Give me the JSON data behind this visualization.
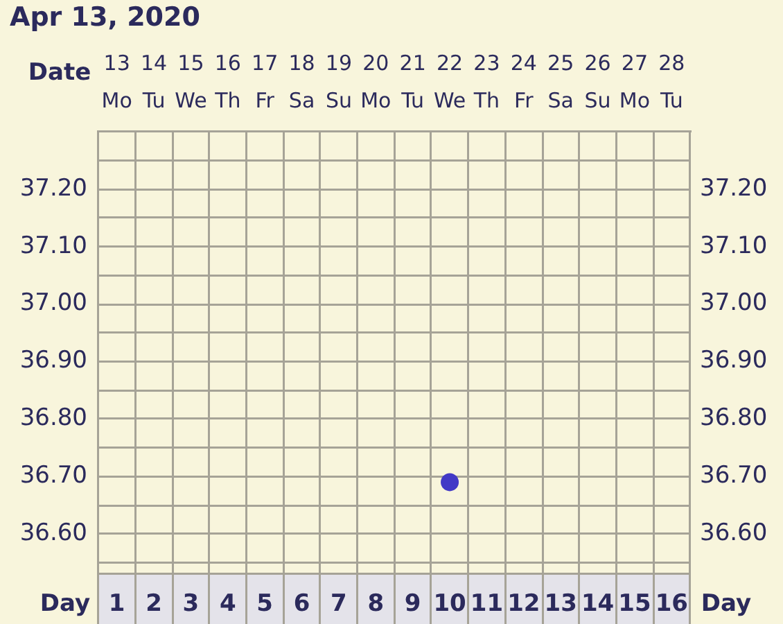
{
  "chart_data": {
    "type": "scatter",
    "title": "Apr 13, 2020",
    "xlabel": "Day",
    "x2label": "Date",
    "series": [
      {
        "color": "#4239c6",
        "x": [
          10
        ],
        "values": [
          36.69
        ]
      }
    ],
    "xlim": [
      0.5,
      16.5
    ],
    "xticks": [
      1,
      2,
      3,
      4,
      5,
      6,
      7,
      8,
      9,
      10,
      11,
      12,
      13,
      14,
      15,
      16
    ],
    "x2lim": [
      "2020-04-12T12:00",
      "2020-04-28T12:00"
    ],
    "x2ticks": [
      {
        "value": "2020-04-13",
        "label": "13 Mo"
      },
      {
        "value": "2020-04-14",
        "label": "14 Tu"
      },
      {
        "value": "2020-04-15",
        "label": "15 We"
      },
      {
        "value": "2020-04-16",
        "label": "16 Th"
      },
      {
        "value": "2020-04-17",
        "label": "17 Fr"
      },
      {
        "value": "2020-04-18",
        "label": "18 Sa"
      },
      {
        "value": "2020-04-19",
        "label": "19 Su"
      },
      {
        "value": "2020-04-20",
        "label": "20 Mo"
      },
      {
        "value": "2020-04-21",
        "label": "21 Tu"
      },
      {
        "value": "2020-04-22",
        "label": "22 We"
      },
      {
        "value": "2020-04-23",
        "label": "23 Th"
      },
      {
        "value": "2020-04-24",
        "label": "24 Fr"
      },
      {
        "value": "2020-04-25",
        "label": "25 Sa"
      },
      {
        "value": "2020-04-26",
        "label": "26 Su"
      },
      {
        "value": "2020-04-27",
        "label": "27 Mo"
      },
      {
        "value": "2020-04-28",
        "label": "28 Tu"
      }
    ],
    "ylim": [
      36.53,
      37.3
    ],
    "yticks": [
      {
        "value": 36.55,
        "label": null
      },
      {
        "value": 36.6,
        "label": "36.60"
      },
      {
        "value": 36.65,
        "label": null
      },
      {
        "value": 36.7,
        "label": "36.70"
      },
      {
        "value": 36.75,
        "label": null
      },
      {
        "value": 36.8,
        "label": "36.80"
      },
      {
        "value": 36.85,
        "label": null
      },
      {
        "value": 36.9,
        "label": "36.90"
      },
      {
        "value": 36.95,
        "label": null
      },
      {
        "value": 37.0,
        "label": "37.00"
      },
      {
        "value": 37.05,
        "label": null
      },
      {
        "value": 37.1,
        "label": "37.10"
      },
      {
        "value": 37.15,
        "label": null
      },
      {
        "value": 37.2,
        "label": "37.20"
      },
      {
        "value": 37.25,
        "label": null
      }
    ],
    "y2lim": [
      36.53,
      37.3
    ],
    "y2ticks": [
      {
        "value": 36.55,
        "label": null
      },
      {
        "value": 36.6,
        "label": "36.60"
      },
      {
        "value": 36.65,
        "label": null
      },
      {
        "value": 36.7,
        "label": "36.70"
      },
      {
        "value": 36.75,
        "label": null
      },
      {
        "value": 36.8,
        "label": "36.80"
      },
      {
        "value": 36.85,
        "label": null
      },
      {
        "value": 36.9,
        "label": "36.90"
      },
      {
        "value": 36.95,
        "label": null
      },
      {
        "value": 37.0,
        "label": "37.00"
      },
      {
        "value": 37.05,
        "label": null
      },
      {
        "value": 37.1,
        "label": "37.10"
      },
      {
        "value": 37.15,
        "label": null
      },
      {
        "value": 37.2,
        "label": "37.20"
      },
      {
        "value": 37.25,
        "label": null
      }
    ],
    "grid": true,
    "legend": false,
    "marker": "circle"
  }
}
